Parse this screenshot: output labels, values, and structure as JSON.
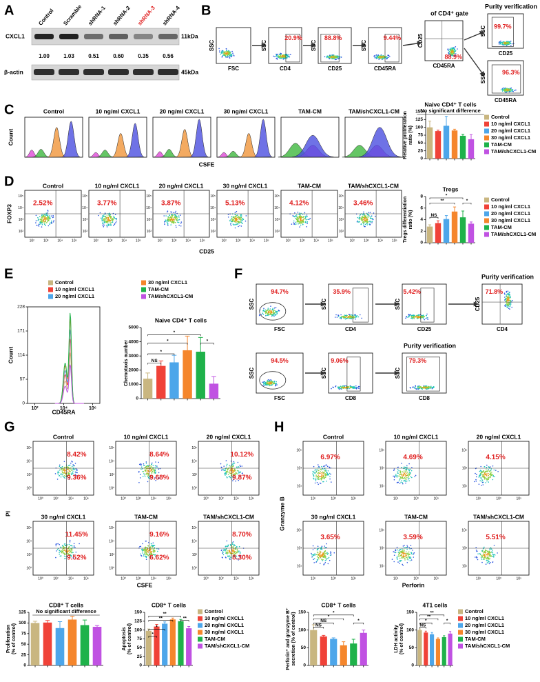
{
  "groups": [
    {
      "name": "Control",
      "color": "#c9b680"
    },
    {
      "name": "10 ng/ml CXCL1",
      "color": "#f04238"
    },
    {
      "name": "20 ng/ml CXCL1",
      "color": "#4da6ea"
    },
    {
      "name": "30 ng/ml CXCL1",
      "color": "#f5862c"
    },
    {
      "name": "TAM-CM",
      "color": "#1fb24a"
    },
    {
      "name": "TAM/shCXCL1-CM",
      "color": "#c052e2"
    }
  ],
  "panel_a": {
    "label": "A",
    "lanes": [
      "Control",
      "Scramble",
      "shRNA-1",
      "shRNA-2",
      "shRNA-3",
      "shRNA-4"
    ],
    "lane_colors": [
      "#000000",
      "#000000",
      "#000000",
      "#000000",
      "#e02020",
      "#000000"
    ],
    "blots": [
      {
        "name": "CXCL1",
        "size": "11kDa"
      },
      {
        "name": "β-actin",
        "size": "45kDa"
      }
    ],
    "values": [
      1,
      1.03,
      0.51,
      0.6,
      0.35,
      0.56
    ],
    "value_labels": [
      "1.00",
      "1.03",
      "0.51",
      "0.60",
      "0.35",
      "0.56"
    ]
  },
  "panel_b": {
    "label": "B",
    "plots": [
      {
        "x_label": "FSC",
        "y_label": "SSC"
      },
      {
        "x_label": "CD4",
        "y_label": "SSC",
        "gate": "20.9%"
      },
      {
        "x_label": "CD25",
        "y_label": "SSC",
        "gate": "88.8%"
      },
      {
        "x_label": "CD45RA",
        "y_label": "SSC",
        "gate": "9.44%"
      },
      {
        "x_label": "CD45RA",
        "y_label": "CD25",
        "gate": "88.9%",
        "title": "of CD4⁺ gate"
      },
      {
        "x_label": "CD25",
        "y_label": "SSC",
        "gate": "99.7%",
        "title": "Purity verification"
      },
      {
        "x_label": "CD45RA",
        "y_label": "SSC",
        "gate": "96.3%"
      }
    ]
  },
  "panel_c": {
    "label": "C",
    "y_label": "Count",
    "x_label": "CSFE",
    "chart": {
      "type": "bar",
      "title": "Naive CD4⁺ T cells",
      "annotation": "No significant difference",
      "y_label": [
        "Relative proliferation",
        "ratio (%)"
      ],
      "ylim": [
        0,
        150
      ],
      "yticks": [
        0,
        25,
        50,
        75,
        100,
        125,
        150
      ],
      "values": [
        100,
        88,
        105,
        90,
        73,
        62
      ],
      "errors": [
        20,
        3,
        30,
        4,
        5,
        15
      ]
    }
  },
  "panel_d": {
    "label": "D",
    "y_label": "FOXP3",
    "x_label": "CD25",
    "tick_labels": [
      "10²",
      "10³",
      "10⁴",
      "10⁵"
    ],
    "percents": [
      "2.52%",
      "3.77%",
      "3.87%",
      "5.13%",
      "4.12%",
      "3.46%"
    ],
    "chart": {
      "type": "bar",
      "title": "Tregs",
      "y_label": [
        "Tregs differentiation",
        "ratio (%)"
      ],
      "ylim": [
        0,
        8
      ],
      "yticks": [
        0,
        2,
        4,
        6,
        8
      ],
      "values": [
        2.8,
        3.4,
        4.1,
        5.4,
        4.4,
        3.3
      ],
      "errors": [
        0.3,
        0.4,
        0.6,
        0.8,
        1.1,
        0.3
      ],
      "significance": [
        "NS",
        "**",
        "*",
        "*"
      ]
    }
  },
  "panel_e": {
    "label": "E",
    "hist": {
      "y_label": "Count",
      "x_label": "CD45RA",
      "ylim": [
        0,
        228
      ],
      "yticks": [
        0,
        57,
        114,
        171,
        228
      ],
      "xlim": [
        1.5,
        6.5
      ],
      "xticks": [
        {
          "value": 2,
          "label": "10²"
        },
        {
          "value": 4,
          "label": "10⁴"
        },
        {
          "value": 6,
          "label": "10⁶"
        }
      ]
    },
    "chart": {
      "type": "bar",
      "title": "Naive CD4⁺ T cells",
      "y_label": [
        "Chemotaxis number"
      ],
      "ylim": [
        0,
        5000
      ],
      "yticks": [
        0,
        1000,
        2000,
        3000,
        4000,
        5000
      ],
      "values": [
        1400,
        2300,
        2550,
        3400,
        3300,
        1050
      ],
      "errors": [
        400,
        350,
        500,
        1000,
        1000,
        500
      ],
      "significance": [
        "NS",
        "*",
        "*",
        "*",
        "*"
      ]
    }
  },
  "panel_f": {
    "label": "F",
    "plots": [
      {
        "x_label": "FSC",
        "y_label": "SSC",
        "gate": "94.7%"
      },
      {
        "x_label": "CD4",
        "y_label": "SSC",
        "gate": "35.9%"
      },
      {
        "x_label": "CD25",
        "y_label": "SSC",
        "gate": "5.42%"
      },
      {
        "x_label": "CD4",
        "y_label": "CD25",
        "gate": "71.8%",
        "title": "Purity verification"
      },
      {
        "x_label": "FSC",
        "y_label": "SSC",
        "gate": "94.5%"
      },
      {
        "x_label": "CD8",
        "y_label": "SSC",
        "gate": "9.06%"
      },
      {
        "x_label": "CD8",
        "y_label": "SSC",
        "gate": "79.3%",
        "title": "Purity verification"
      }
    ]
  },
  "panel_g": {
    "label": "G",
    "y_label": "PI",
    "x_label": "CSFE",
    "tick_labels": [
      "10⁰",
      "10²",
      "10⁴",
      "10⁶"
    ],
    "upper_percents": [
      "8.42%",
      "8.64%",
      "10.12%",
      "11.45%",
      "9.16%",
      "8.70%"
    ],
    "lower_percents": [
      "9.36%",
      "9.68%",
      "9.87%",
      "9.52%",
      "6.62%",
      "8.30%"
    ],
    "charts": [
      {
        "type": "bar",
        "title": "CD8⁺ T cells",
        "annotation": "No significant difference",
        "y_label": [
          "Proliferation",
          "(% of control)"
        ],
        "ylim": [
          0,
          125
        ],
        "yticks": [
          0,
          25,
          50,
          75,
          100,
          125
        ],
        "values": [
          100,
          101,
          88,
          108,
          95,
          91
        ],
        "errors": [
          4,
          5,
          15,
          8,
          12,
          3
        ]
      },
      {
        "type": "bar",
        "title": "CD8⁺ T cells",
        "y_label": [
          "Apoptosis",
          "(% of control)"
        ],
        "ylim": [
          0,
          150
        ],
        "yticks": [
          0,
          25,
          50,
          75,
          100,
          125,
          150
        ],
        "values": [
          98,
          110,
          118,
          130,
          125,
          105
        ],
        "errors": [
          5,
          6,
          5,
          4,
          5,
          5
        ],
        "significance": [
          "*",
          "*",
          "**",
          "**",
          "**"
        ]
      }
    ]
  },
  "panel_h": {
    "label": "H",
    "y_label": "Granzyme B",
    "x_label": "Perforin",
    "tick_labels": [
      "10¹",
      "10³",
      "10⁵"
    ],
    "percents": [
      "6.97%",
      "4.69%",
      "4.15%",
      "3.65%",
      "3.59%",
      "5.51%"
    ],
    "charts": [
      {
        "type": "bar",
        "title": "CD8⁺ T cells",
        "y_label": [
          "Perforin⁺ and granzyme B⁺",
          "secretion (% of control)"
        ],
        "ylim": [
          0,
          150
        ],
        "yticks": [
          0,
          50,
          100,
          150
        ],
        "values": [
          100,
          82,
          75,
          57,
          62,
          92
        ],
        "errors": [
          15,
          3,
          3,
          10,
          12,
          8
        ],
        "significance": [
          "NS",
          "NS",
          "*",
          "*",
          "*"
        ]
      },
      {
        "type": "bar",
        "title": "4T1 cells",
        "y_label": [
          "LDH activity",
          "(% of control)"
        ],
        "ylim": [
          0,
          150
        ],
        "yticks": [
          0,
          50,
          100,
          150
        ],
        "values": [
          100,
          93,
          88,
          75,
          80,
          90
        ],
        "errors": [
          3,
          4,
          5,
          3,
          4,
          6
        ],
        "significance": [
          "NS",
          "*",
          "**",
          "**",
          "*"
        ]
      }
    ]
  }
}
